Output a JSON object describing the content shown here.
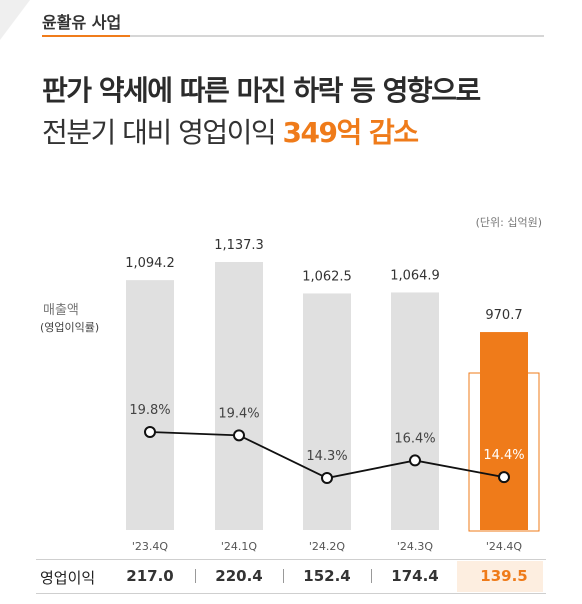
{
  "section": {
    "label": "윤활유 사업"
  },
  "headline": {
    "line1": "판가 약세에 따른 마진 하락 등 영향으로",
    "line2_prefix": "전분기 대비 영업이익 ",
    "line2_accent": "349억 감소"
  },
  "unit_note": "(단위: 십억원)",
  "legend": {
    "title": "매출액",
    "subtitle": "(영업이익률)"
  },
  "colors": {
    "bar": "#e0e0e0",
    "highlight_bar": "#ef7b1a",
    "highlight_box": "#ef7b1a",
    "line": "#111111",
    "accent": "#ef7b1a"
  },
  "chart_data": {
    "type": "bar",
    "categories": [
      "'23.4Q",
      "'24.1Q",
      "'24.2Q",
      "'24.3Q",
      "'24.4Q"
    ],
    "series": [
      {
        "name": "매출액",
        "values": [
          1094.2,
          1137.3,
          1062.5,
          1064.9,
          970.7
        ],
        "labels": [
          "1,094.2",
          "1,137.3",
          "1,062.5",
          "1,064.9",
          "970.7"
        ]
      },
      {
        "name": "영업이익률",
        "type": "line",
        "values": [
          19.8,
          19.4,
          14.3,
          16.4,
          14.4
        ],
        "labels": [
          "19.8%",
          "19.4%",
          "14.3%",
          "16.4%",
          "14.4%"
        ]
      }
    ],
    "highlight_index": 4
  },
  "table": {
    "row_label": "영업이익",
    "values": [
      "217.0",
      "220.4",
      "152.4",
      "174.4",
      "139.5"
    ]
  }
}
